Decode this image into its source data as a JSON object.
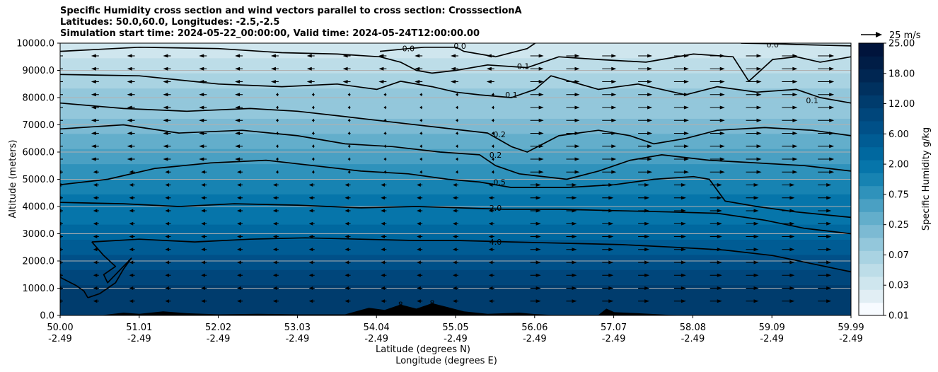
{
  "titles": [
    "Specific Humidity cross section and wind vectors parallel to cross section: CrosssectionA",
    "Latitudes: 50.0,60.0, Longitudes: -2.5,-2.5",
    "Simulation start time: 2024-05-22_00:00:00, Valid time: 2024-05-24T12:00:00.00"
  ],
  "colors": {
    "scale": [
      "#f7fbff",
      "#e1eef4",
      "#cfe6ee",
      "#bddde8",
      "#a9d3e2",
      "#93c7db",
      "#7cbad3",
      "#63aecb",
      "#4aa0c3",
      "#2f92bb",
      "#1783b2",
      "#0675aa",
      "#00689f",
      "#005c94",
      "#005088",
      "#00467b",
      "#003c6d",
      "#00315f",
      "#002652",
      "#001d46",
      "#00143c"
    ],
    "terrain": "#000000",
    "contour": "#000000",
    "grid": "#b0b0b0"
  },
  "chart_data": {
    "type": "contourf",
    "xlabel_lines": [
      "Latitude (degrees N)",
      "Longitude (degrees E)"
    ],
    "ylabel": "Altitude (meters)",
    "ylim": [
      0,
      10000
    ],
    "yticks": [
      "0.0",
      "1000.0",
      "2000.0",
      "3000.0",
      "4000.0",
      "5000.0",
      "6000.0",
      "7000.0",
      "8000.0",
      "9000.0",
      "10000.0"
    ],
    "xticks": [
      {
        "lat": "50.00",
        "lon": "-2.49"
      },
      {
        "lat": "51.01",
        "lon": "-2.49"
      },
      {
        "lat": "52.02",
        "lon": "-2.49"
      },
      {
        "lat": "53.03",
        "lon": "-2.49"
      },
      {
        "lat": "54.04",
        "lon": "-2.49"
      },
      {
        "lat": "55.05",
        "lon": "-2.49"
      },
      {
        "lat": "56.06",
        "lon": "-2.49"
      },
      {
        "lat": "57.07",
        "lon": "-2.49"
      },
      {
        "lat": "58.08",
        "lon": "-2.49"
      },
      {
        "lat": "59.09",
        "lon": "-2.49"
      },
      {
        "lat": "59.99",
        "lon": "-2.49"
      }
    ],
    "grid": "horizontal",
    "colorbar": {
      "label": "Specific Humidity g/kg",
      "ticks": [
        "0.01",
        "0.03",
        "0.07",
        "0.25",
        "0.75",
        "2.00",
        "6.00",
        "12.00",
        "18.00",
        "25.00"
      ],
      "range": [
        0.01,
        25.0
      ]
    },
    "quiver_key": "25 m/s",
    "contour_labels": [
      {
        "text": "0.0",
        "x": 54.4,
        "y": 9800
      },
      {
        "text": "0.0",
        "x": 55.05,
        "y": 9900
      },
      {
        "text": "0.0",
        "x": 59.0,
        "y": 9950
      },
      {
        "text": "0.1",
        "x": 55.85,
        "y": 9150
      },
      {
        "text": "0.1",
        "x": 55.7,
        "y": 8100
      },
      {
        "text": "0.1",
        "x": 59.5,
        "y": 7900
      },
      {
        "text": "0.2",
        "x": 55.55,
        "y": 6650
      },
      {
        "text": "0.2",
        "x": 55.5,
        "y": 5900
      },
      {
        "text": "0.5",
        "x": 55.55,
        "y": 4900
      },
      {
        "text": "2.0",
        "x": 55.5,
        "y": 3950
      },
      {
        "text": "4.0",
        "x": 55.5,
        "y": 2700
      },
      {
        "text": "8",
        "x": 54.3,
        "y": 400
      },
      {
        "text": "8",
        "x": 54.7,
        "y": 450
      }
    ],
    "contours": [
      {
        "level": "0.0",
        "points": [
          [
            54.04,
            9700
          ],
          [
            54.4,
            9800
          ],
          [
            54.6,
            9850
          ],
          [
            55.0,
            9850
          ],
          [
            55.1,
            9700
          ],
          [
            55.5,
            9500
          ],
          [
            55.9,
            9800
          ],
          [
            56.0,
            10000
          ]
        ]
      },
      {
        "level": "0.0",
        "points": [
          [
            58.6,
            10000
          ],
          [
            59.0,
            9980
          ],
          [
            59.3,
            9950
          ],
          [
            59.99,
            9900
          ]
        ]
      },
      {
        "level": "0.1",
        "points": [
          [
            50.0,
            9700
          ],
          [
            51.0,
            9850
          ],
          [
            52.0,
            9800
          ],
          [
            52.8,
            9650
          ],
          [
            53.5,
            9600
          ],
          [
            54.04,
            9500
          ],
          [
            54.3,
            9300
          ],
          [
            54.5,
            9000
          ],
          [
            54.7,
            8900
          ],
          [
            55.0,
            9000
          ],
          [
            55.4,
            9200
          ],
          [
            55.9,
            9100
          ],
          [
            56.3,
            9500
          ],
          [
            56.8,
            9400
          ],
          [
            57.4,
            9300
          ],
          [
            58.0,
            9600
          ],
          [
            58.5,
            9500
          ],
          [
            58.7,
            8600
          ],
          [
            59.0,
            9400
          ],
          [
            59.3,
            9500
          ],
          [
            59.6,
            9300
          ],
          [
            59.99,
            9500
          ]
        ]
      },
      {
        "level": "0.1",
        "points": [
          [
            50.0,
            8850
          ],
          [
            51.0,
            8800
          ],
          [
            52.0,
            8500
          ],
          [
            52.8,
            8400
          ],
          [
            53.5,
            8500
          ],
          [
            54.0,
            8300
          ],
          [
            54.3,
            8600
          ],
          [
            54.7,
            8400
          ],
          [
            55.0,
            8200
          ],
          [
            55.3,
            8100
          ],
          [
            55.7,
            8000
          ],
          [
            56.0,
            8300
          ],
          [
            56.2,
            8800
          ],
          [
            56.8,
            8300
          ],
          [
            57.3,
            8500
          ],
          [
            57.9,
            8100
          ],
          [
            58.3,
            8400
          ],
          [
            58.8,
            8200
          ],
          [
            59.3,
            8300
          ],
          [
            59.6,
            8000
          ],
          [
            59.99,
            7800
          ]
        ]
      },
      {
        "level": "0.2",
        "points": [
          [
            50.0,
            7800
          ],
          [
            50.8,
            7600
          ],
          [
            51.6,
            7500
          ],
          [
            52.4,
            7600
          ],
          [
            53.0,
            7500
          ],
          [
            53.6,
            7300
          ],
          [
            54.2,
            7100
          ],
          [
            54.8,
            6900
          ],
          [
            55.4,
            6700
          ],
          [
            55.7,
            6200
          ],
          [
            55.9,
            6000
          ],
          [
            56.3,
            6600
          ],
          [
            56.8,
            6800
          ],
          [
            57.2,
            6600
          ],
          [
            57.5,
            6300
          ],
          [
            57.9,
            6500
          ],
          [
            58.3,
            6800
          ],
          [
            58.9,
            6900
          ],
          [
            59.5,
            6800
          ],
          [
            59.99,
            6600
          ]
        ]
      },
      {
        "level": "0.2",
        "points": [
          [
            50.0,
            6850
          ],
          [
            50.8,
            7000
          ],
          [
            51.5,
            6700
          ],
          [
            52.3,
            6800
          ],
          [
            53.0,
            6600
          ],
          [
            53.6,
            6300
          ],
          [
            54.2,
            6200
          ],
          [
            54.8,
            6000
          ],
          [
            55.3,
            5900
          ],
          [
            55.5,
            5500
          ],
          [
            55.8,
            5200
          ],
          [
            56.4,
            5000
          ],
          [
            56.8,
            5300
          ],
          [
            57.2,
            5700
          ],
          [
            57.6,
            5900
          ],
          [
            58.2,
            5700
          ],
          [
            58.8,
            5600
          ],
          [
            59.4,
            5500
          ],
          [
            59.99,
            5300
          ]
        ]
      },
      {
        "level": "0.5",
        "points": [
          [
            50.0,
            4800
          ],
          [
            50.6,
            5000
          ],
          [
            51.2,
            5400
          ],
          [
            51.9,
            5600
          ],
          [
            52.6,
            5700
          ],
          [
            53.2,
            5500
          ],
          [
            53.8,
            5300
          ],
          [
            54.4,
            5200
          ],
          [
            54.9,
            5000
          ],
          [
            55.3,
            4900
          ],
          [
            55.7,
            4700
          ],
          [
            56.4,
            4700
          ],
          [
            57.0,
            4800
          ],
          [
            57.5,
            5000
          ],
          [
            58.0,
            5100
          ],
          [
            58.2,
            5000
          ],
          [
            58.4,
            4200
          ],
          [
            58.8,
            4000
          ],
          [
            59.3,
            3800
          ],
          [
            59.99,
            3600
          ]
        ]
      },
      {
        "level": "2.0",
        "points": [
          [
            50.0,
            4150
          ],
          [
            50.8,
            4100
          ],
          [
            51.5,
            4000
          ],
          [
            52.2,
            4100
          ],
          [
            53.0,
            4050
          ],
          [
            53.8,
            3950
          ],
          [
            54.5,
            4000
          ],
          [
            55.05,
            3950
          ],
          [
            55.6,
            3900
          ],
          [
            56.3,
            3900
          ],
          [
            57.0,
            3850
          ],
          [
            57.7,
            3800
          ],
          [
            58.3,
            3750
          ],
          [
            58.9,
            3500
          ],
          [
            59.4,
            3200
          ],
          [
            59.99,
            3000
          ]
        ]
      },
      {
        "level": "4.0",
        "points": [
          [
            50.4,
            2700
          ],
          [
            51.0,
            2800
          ],
          [
            51.7,
            2700
          ],
          [
            52.4,
            2800
          ],
          [
            53.1,
            2850
          ],
          [
            53.8,
            2800
          ],
          [
            54.5,
            2750
          ],
          [
            55.05,
            2750
          ],
          [
            55.7,
            2700
          ],
          [
            56.4,
            2650
          ],
          [
            57.1,
            2600
          ],
          [
            57.8,
            2500
          ],
          [
            58.4,
            2400
          ],
          [
            59.0,
            2200
          ],
          [
            59.5,
            1900
          ],
          [
            59.99,
            1600
          ]
        ]
      },
      {
        "level": "4.0",
        "points": [
          [
            50.4,
            2700
          ],
          [
            50.55,
            2200
          ],
          [
            50.7,
            1800
          ],
          [
            50.55,
            1500
          ],
          [
            50.6,
            1200
          ],
          [
            50.8,
            1800
          ],
          [
            50.9,
            2100
          ],
          [
            50.8,
            1700
          ],
          [
            50.7,
            1200
          ],
          [
            50.6,
            1000
          ],
          [
            50.5,
            800
          ],
          [
            50.35,
            650
          ]
        ]
      },
      {
        "level": "4.0",
        "points": [
          [
            50.0,
            1400
          ],
          [
            50.2,
            1100
          ],
          [
            50.3,
            900
          ],
          [
            50.35,
            650
          ]
        ]
      }
    ],
    "terrain_profile": [
      [
        50.0,
        0
      ],
      [
        50.5,
        0
      ],
      [
        50.8,
        100
      ],
      [
        51.0,
        60
      ],
      [
        51.3,
        150
      ],
      [
        51.6,
        80
      ],
      [
        52.0,
        40
      ],
      [
        52.5,
        60
      ],
      [
        53.0,
        40
      ],
      [
        53.6,
        40
      ],
      [
        53.9,
        280
      ],
      [
        54.1,
        200
      ],
      [
        54.3,
        400
      ],
      [
        54.5,
        250
      ],
      [
        54.7,
        450
      ],
      [
        54.9,
        300
      ],
      [
        55.1,
        150
      ],
      [
        55.4,
        60
      ],
      [
        55.8,
        100
      ],
      [
        56.0,
        50
      ],
      [
        56.2,
        20
      ],
      [
        56.8,
        20
      ],
      [
        56.9,
        250
      ],
      [
        57.0,
        120
      ],
      [
        57.3,
        80
      ],
      [
        57.7,
        20
      ],
      [
        58.0,
        0
      ],
      [
        59.99,
        0
      ]
    ]
  }
}
